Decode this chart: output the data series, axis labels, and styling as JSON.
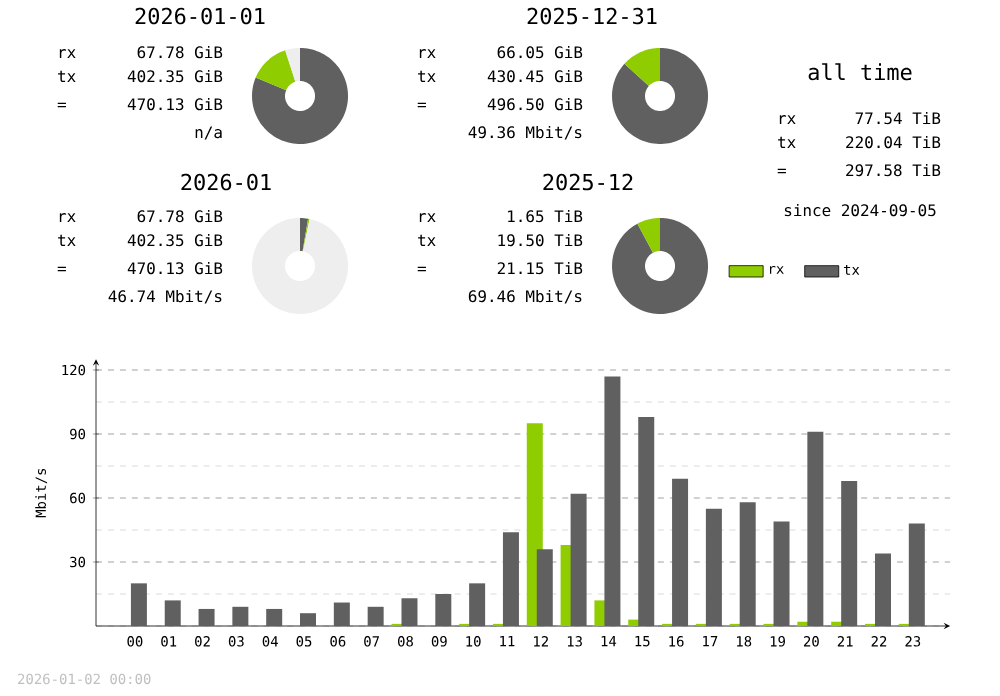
{
  "chart_data": [
    {
      "type": "donut",
      "title": "2026-01-01",
      "categories": [
        null,
        null,
        null
      ],
      "values": [
        81.3,
        13.7,
        5
      ],
      "colors": [
        "#606060",
        "#8fcc00",
        "#eeeeee"
      ],
      "annotations": [
        "rx",
        "67.78 GiB",
        "tx",
        "402.35 GiB",
        "=",
        "470.13 GiB",
        "n/a"
      ]
    },
    {
      "type": "donut",
      "title": "2025-12-31",
      "categories": [
        null,
        null
      ],
      "values": [
        86.7,
        13.3
      ],
      "colors": [
        "#606060",
        "#8fcc00"
      ],
      "annotations": [
        "rx",
        "66.05 GiB",
        "tx",
        "430.45 GiB",
        "=",
        "496.50 GiB",
        "49.36 Mbit/s"
      ]
    },
    {
      "type": "donut",
      "title": "2026-01",
      "categories": [
        null,
        null,
        null
      ],
      "values": [
        2.7,
        0.5,
        96.8
      ],
      "colors": [
        "#606060",
        "#8fcc00",
        "#eeeeee"
      ],
      "annotations": [
        "rx",
        "67.78 GiB",
        "tx",
        "402.35 GiB",
        "=",
        "470.13 GiB",
        "46.74 Mbit/s"
      ]
    },
    {
      "type": "donut",
      "title": "2025-12",
      "categories": [
        null,
        null
      ],
      "values": [
        92.2,
        7.8
      ],
      "colors": [
        "#606060",
        "#8fcc00"
      ],
      "annotations": [
        "rx",
        "1.65 TiB",
        "tx",
        "19.50 TiB",
        "=",
        "21.15 TiB",
        "69.46 Mbit/s"
      ]
    },
    {
      "type": "other",
      "title": "all time",
      "annotations": [
        "rx",
        "77.54 TiB",
        "tx",
        "220.04 TiB",
        "=",
        "297.58 TiB",
        "since 2024-09-05"
      ]
    },
    {
      "type": "bar",
      "ylabel": "Mbit/s",
      "categories": [
        "00",
        "01",
        "02",
        "03",
        "04",
        "05",
        "06",
        "07",
        "08",
        "09",
        "10",
        "11",
        "12",
        "13",
        "14",
        "15",
        "16",
        "17",
        "18",
        "19",
        "20",
        "21",
        "22",
        "23"
      ],
      "series": [
        {
          "name": "rx",
          "color": "#8fcc00",
          "values": [
            0,
            0,
            0,
            0,
            0,
            0,
            0,
            0,
            1,
            0,
            1,
            1,
            95,
            38,
            12,
            3,
            1,
            1,
            1,
            1,
            2,
            2,
            1,
            1
          ]
        },
        {
          "name": "tx",
          "color": "#606060",
          "values": [
            20,
            12,
            8,
            9,
            8,
            6,
            11,
            9,
            13,
            15,
            20,
            44,
            36,
            62,
            117,
            98,
            69,
            55,
            58,
            49,
            91,
            68,
            34,
            48
          ]
        }
      ],
      "ylim": [
        0,
        125
      ],
      "yticks": [
        {
          "value": 0,
          "label": null
        },
        {
          "value": 15,
          "label": null
        },
        30,
        {
          "value": 45,
          "label": null
        },
        60,
        {
          "value": 75,
          "label": null
        },
        90,
        {
          "value": 105,
          "label": null
        },
        120
      ],
      "grid": "y",
      "legend": "top right",
      "annotations": [
        "2026-01-02 00:00"
      ]
    }
  ]
}
